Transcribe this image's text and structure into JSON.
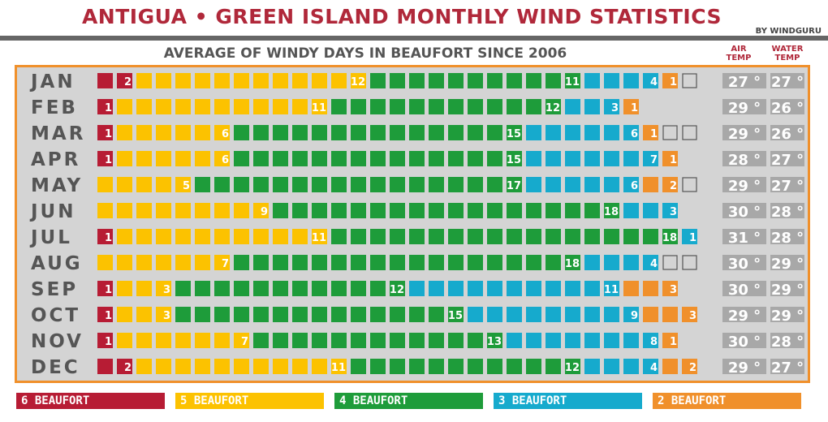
{
  "title": "ANTIGUA • GREEN ISLAND MONTHLY WIND STATISTICS",
  "byline": "BY WINDGURU",
  "subtitle": "AVERAGE OF WINDY DAYS IN BEAUFORT SINCE 2006",
  "air_temp_label_1": "AIR",
  "air_temp_label_2": "TEMP",
  "water_temp_label_1": "WATER",
  "water_temp_label_2": "TEMP",
  "colors": {
    "bft6": "#b71c34",
    "bft5": "#fcc200",
    "bft4": "#1e9c3a",
    "bft3": "#16aacd",
    "bft2": "#f0902b",
    "empty": "#d4d4d4",
    "panel_border": "#f0902b",
    "temp_box": "#a8a8a8"
  },
  "legend": [
    {
      "label": "6 BEAUFORT",
      "color": "#b71c34"
    },
    {
      "label": "5 BEAUFORT",
      "color": "#fcc200"
    },
    {
      "label": "4 BEAUFORT",
      "color": "#1e9c3a"
    },
    {
      "label": "3 BEAUFORT",
      "color": "#16aacd"
    },
    {
      "label": "2 BEAUFORT",
      "color": "#f0902b"
    }
  ],
  "chart_data": {
    "type": "table",
    "description_unit": "days per month",
    "categories": [
      "6 BEAUFORT",
      "5 BEAUFORT",
      "4 BEAUFORT",
      "3 BEAUFORT",
      "2 BEAUFORT"
    ],
    "months": [
      {
        "month": "JAN",
        "days": 31,
        "bft": [
          2,
          12,
          11,
          4,
          1
        ],
        "air": "27 °",
        "water": "27 °"
      },
      {
        "month": "FEB",
        "days": 28,
        "bft": [
          1,
          11,
          12,
          3,
          1
        ],
        "air": "29 °",
        "water": "26 °"
      },
      {
        "month": "MAR",
        "days": 31,
        "bft": [
          1,
          6,
          15,
          6,
          1
        ],
        "air": "29 °",
        "water": "26 °"
      },
      {
        "month": "APR",
        "days": 30,
        "bft": [
          1,
          6,
          15,
          7,
          1
        ],
        "air": "28 °",
        "water": "27 °"
      },
      {
        "month": "MAY",
        "days": 31,
        "bft": [
          0,
          5,
          17,
          6,
          2
        ],
        "air": "29 °",
        "water": "27 °"
      },
      {
        "month": "JUN",
        "days": 30,
        "bft": [
          0,
          9,
          18,
          3,
          0
        ],
        "air": "30 °",
        "water": "28 °"
      },
      {
        "month": "JUL",
        "days": 31,
        "bft": [
          1,
          11,
          18,
          1,
          0
        ],
        "air": "31 °",
        "water": "28 °"
      },
      {
        "month": "AUG",
        "days": 31,
        "bft": [
          0,
          7,
          18,
          4,
          0
        ],
        "air": "30 °",
        "water": "29 °"
      },
      {
        "month": "SEP",
        "days": 30,
        "bft": [
          1,
          3,
          12,
          11,
          3
        ],
        "air": "30 °",
        "water": "29 °"
      },
      {
        "month": "OCT",
        "days": 31,
        "bft": [
          1,
          3,
          15,
          9,
          3
        ],
        "air": "29 °",
        "water": "29 °"
      },
      {
        "month": "NOV",
        "days": 30,
        "bft": [
          1,
          7,
          13,
          8,
          1
        ],
        "air": "30 °",
        "water": "28 °"
      },
      {
        "month": "DEC",
        "days": 31,
        "bft": [
          2,
          11,
          12,
          4,
          2
        ],
        "air": "29 °",
        "water": "27 °"
      }
    ]
  }
}
